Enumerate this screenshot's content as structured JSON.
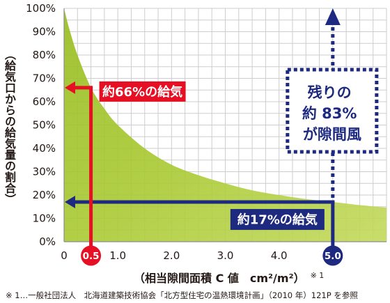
{
  "chart_data": {
    "type": "area",
    "xlabel": "（相当隙間面積 C 値　cm²/m²）",
    "xlabel_note": "※ 1",
    "ylabel": "（給気口からの給気量の割合）",
    "xlim": [
      0,
      6
    ],
    "ylim": [
      0,
      100
    ],
    "grid": true,
    "y_ticks": [
      {
        "value": 100,
        "label": "100%"
      },
      {
        "value": 90,
        "label": "90%"
      },
      {
        "value": 80,
        "label": "80%"
      },
      {
        "value": 70,
        "label": "70%"
      },
      {
        "value": 60,
        "label": "60%"
      },
      {
        "value": 50,
        "label": "50%"
      },
      {
        "value": 40,
        "label": "40%"
      },
      {
        "value": 30,
        "label": "30%"
      },
      {
        "value": 20,
        "label": "20%"
      },
      {
        "value": 10,
        "label": "10%"
      },
      {
        "value": 0,
        "label": "0%"
      }
    ],
    "x_ticks": [
      {
        "value": 0,
        "label": "0"
      },
      {
        "value": 0.5,
        "label": "0.5",
        "marker_color": "#e60f23"
      },
      {
        "value": 1,
        "label": "1.0"
      },
      {
        "value": 2,
        "label": "2.0"
      },
      {
        "value": 3,
        "label": "3.0"
      },
      {
        "value": 4,
        "label": "4.0"
      },
      {
        "value": 5,
        "label": "5.0",
        "marker_color": "#1d2a80"
      }
    ],
    "series": [
      {
        "x": [
          0,
          0.1,
          0.25,
          0.5,
          0.75,
          1,
          1.5,
          2,
          2.5,
          3,
          3.5,
          4,
          4.5,
          5,
          5.5,
          6
        ],
        "y": [
          100,
          91,
          80,
          66,
          57,
          50,
          40,
          33,
          28.5,
          25,
          22,
          20,
          18.3,
          17,
          15.7,
          14.6
        ],
        "color": "#a9c932"
      }
    ],
    "callouts": [
      {
        "x": 0.5,
        "y": 66,
        "label": "約66%の給気",
        "color": "#e60f23"
      },
      {
        "x": 5,
        "y": 17,
        "label": "約17%の給気",
        "color": "#1d2a80"
      }
    ],
    "remaining": {
      "x": 5,
      "from_y": 17,
      "to_y": 100,
      "lines": [
        "残りの",
        "約 83%",
        "が隙間風"
      ],
      "color": "#1d2a80"
    }
  },
  "footnote": "※ 1…一般社団法人　北海道建築技術協会「北方型住宅の温熱環境計画」（2010 年）121P を参照"
}
